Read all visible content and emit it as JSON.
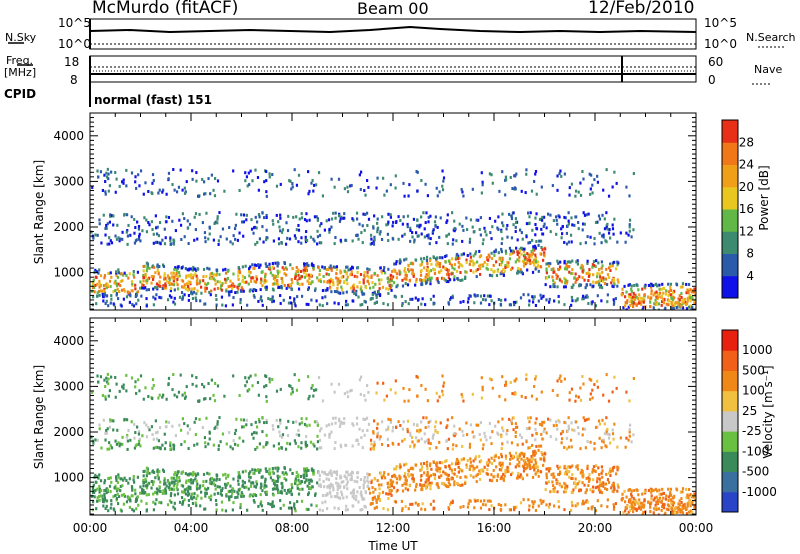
{
  "header": {
    "station": "McMurdo (fitACF)",
    "beam": "Beam 00",
    "date": "12/Feb/2010"
  },
  "status_panels": {
    "nsky_label": "N.Sky",
    "nsearch_label": "N.Search",
    "noise_ticks_left": [
      "10^5",
      "10^0"
    ],
    "noise_ticks_right": [
      "10^5",
      "10^0"
    ],
    "freq_label_line1": "Freq.",
    "freq_label_line2": "[MHz]",
    "freq_ticks": [
      "18",
      "8"
    ],
    "nave_label": "Nave",
    "nave_ticks": [
      "60",
      "0"
    ],
    "cpid_label": "CPID",
    "cpid_value": "normal (fast) 151"
  },
  "chart_data": [
    {
      "type": "heatmap",
      "name": "power",
      "xlabel": "",
      "ylabel": "Slant Range [km]",
      "x_range_hours": [
        0,
        24
      ],
      "ylim": [
        180,
        4500
      ],
      "y_ticks": [
        "1000",
        "2000",
        "3000",
        "4000"
      ],
      "colorbar": {
        "label": "Power [dB]",
        "ticks": [
          "4",
          "8",
          "12",
          "16",
          "20",
          "24",
          "28"
        ],
        "colors": [
          "#1010e8",
          "#2c5aaa",
          "#3c8a70",
          "#62b846",
          "#e8c820",
          "#f0a018",
          "#f07818",
          "#e83018"
        ]
      }
    },
    {
      "type": "heatmap",
      "name": "velocity",
      "xlabel": "Time UT",
      "ylabel": "Slant Range [km]",
      "x_range_hours": [
        0,
        24
      ],
      "x_ticks": [
        "00:00",
        "04:00",
        "08:00",
        "12:00",
        "16:00",
        "20:00",
        "00:00"
      ],
      "ylim": [
        180,
        4500
      ],
      "y_ticks": [
        "1000",
        "2000",
        "3000",
        "4000"
      ],
      "colorbar": {
        "label": "Velocity [m s⁻¹]",
        "ticks": [
          "1000",
          "500",
          "100",
          "25",
          "-25",
          "-100",
          "-500",
          "-1000"
        ],
        "colors": [
          "#2a44c8",
          "#3a70a0",
          "#3a8a5a",
          "#6ac040",
          "#c8c8c8",
          "#f0c040",
          "#f08818",
          "#f06018",
          "#e82010"
        ]
      }
    }
  ]
}
